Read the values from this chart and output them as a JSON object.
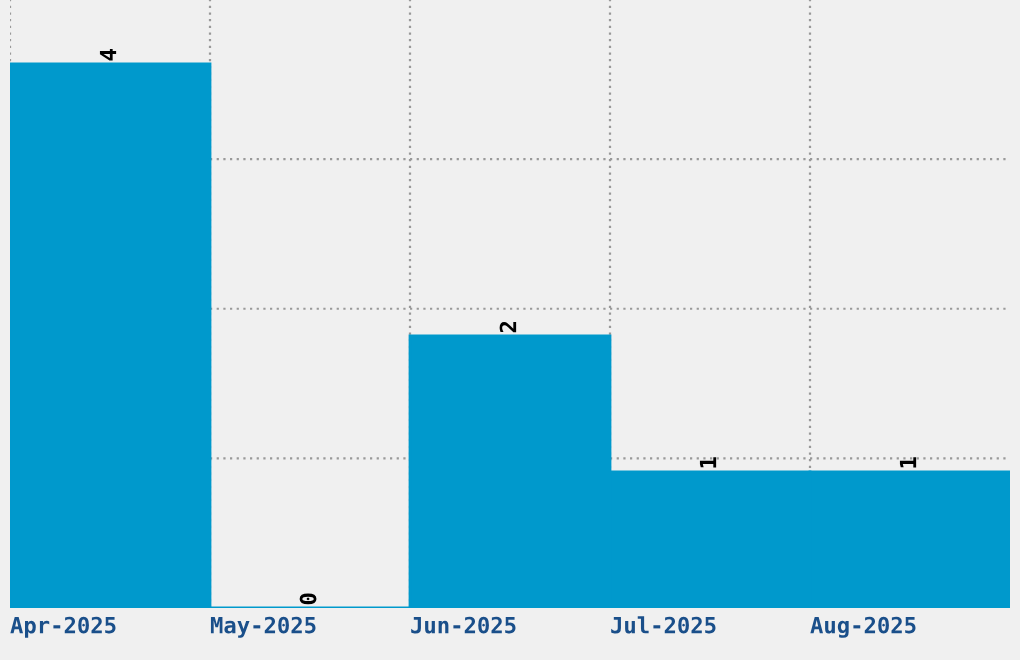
{
  "chart_data": {
    "type": "bar",
    "categories": [
      "Apr-2025",
      "May-2025",
      "Jun-2025",
      "Jul-2025",
      "Aug-2025"
    ],
    "values": [
      4,
      0,
      2,
      1,
      1
    ],
    "color": "#0099cc",
    "ylim": [
      0,
      4.47
    ],
    "yticks": [
      {
        "value": 1.1,
        "label": null
      },
      {
        "value": 2.2,
        "label": null
      },
      {
        "value": 3.3,
        "label": null
      }
    ],
    "tick_labels": "x",
    "grid": true,
    "data_labels": true
  }
}
